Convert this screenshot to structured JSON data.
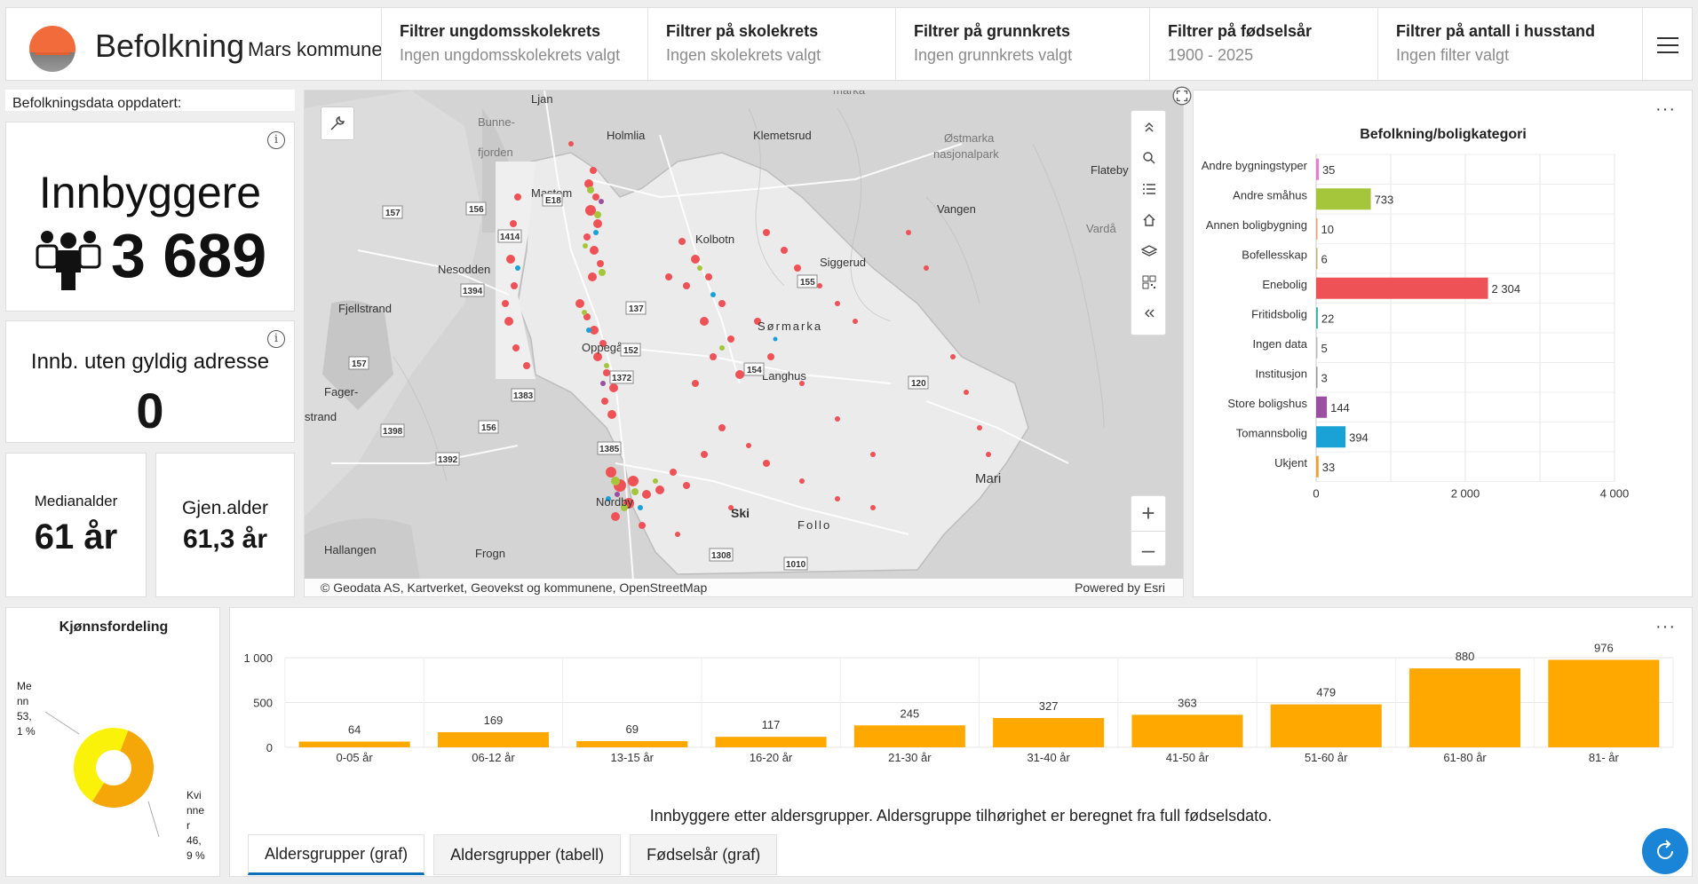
{
  "header": {
    "title": "Befolkning",
    "subtitle": "Mars kommune",
    "filters": [
      {
        "title": "Filtrer ungdomsskolekrets",
        "value": "Ingen ungdomsskolekrets valgt"
      },
      {
        "title": "Filtrer på skolekrets",
        "value": "Ingen skolekrets valgt"
      },
      {
        "title": "Filtrer på grunnkrets",
        "value": "Ingen grunnkrets valgt"
      },
      {
        "title": "Filtrer på fødselsår",
        "value": "1900 - 2025"
      },
      {
        "title": "Filtrer på antall i husstand",
        "value": "Ingen filter valgt"
      }
    ]
  },
  "cards": {
    "updated_label": "Befolkningsdata oppdatert:",
    "innbyggere_label": "Innbyggere",
    "innbyggere_value": "3 689",
    "uten_label": "Innb. uten gyldig adresse",
    "uten_value": "0",
    "median_label": "Medianalder",
    "median_value": "61 år",
    "gjen_label": "Gjen.alder",
    "gjen_value": "61,3 år",
    "info_glyph": "i"
  },
  "map": {
    "place_labels": [
      "Ljan",
      "Bunne-",
      "fjorden",
      "Holmlia",
      "Klemetsrud",
      "Østmarka",
      "nasjonalpark",
      "Flateby",
      "Mastem",
      "Kolbotn",
      "Vangen",
      "Vardå",
      "Nesodden",
      "Siggerud",
      "Fjellstrand",
      "Oppegård",
      "Sørmarka",
      "Langhus",
      "Fager-",
      "strand",
      "Mari",
      "Nordby",
      "Ski",
      "Follo",
      "Hallangen",
      "Frogn",
      "marka"
    ],
    "road_labels": [
      "157",
      "156",
      "E18",
      "1414",
      "1394",
      "137",
      "155",
      "154",
      "152",
      "1372",
      "1383",
      "157",
      "120",
      "1398",
      "156",
      "1385",
      "1392",
      "1308",
      "1010"
    ],
    "attribution": "Geodata AS, Kartverket, Geovekst og kommunene, OpenStreetMap",
    "powered_by": "Powered by Esri",
    "copyright_glyph": "©",
    "toolbar": [
      "collapse-up-icon",
      "search-icon",
      "list-icon",
      "home-icon",
      "layers-icon",
      "qr-icon",
      "collapse-left-icon"
    ],
    "zoom_in": "+",
    "zoom_out": "–"
  },
  "bolig_chart": {
    "more": "···",
    "chart_data": {
      "type": "bar",
      "orientation": "horizontal",
      "title": "Befolkning/boligkategori",
      "categories": [
        "Andre bygningstyper",
        "Andre småhus",
        "Annen boligbygning",
        "Bofellesskap",
        "Enebolig",
        "Fritidsbolig",
        "Ingen data",
        "Institusjon",
        "Store boligshus",
        "Tomannsbolig",
        "Ukjent"
      ],
      "values": [
        35,
        733,
        10,
        6,
        2304,
        22,
        5,
        3,
        144,
        394,
        33
      ],
      "value_labels": [
        "35",
        "733",
        "10",
        "6",
        "2 304",
        "22",
        "5",
        "3",
        "144",
        "394",
        "33"
      ],
      "colors": [
        "#e87ad0",
        "#a5c63b",
        "#f0a070",
        "#c8b070",
        "#ef5256",
        "#2ab5a0",
        "#bbbbbb",
        "#999999",
        "#9b4fa0",
        "#1aa1d6",
        "#f0a030"
      ],
      "xlim": [
        0,
        4000
      ],
      "xticks": [
        "0",
        "2 000",
        "4 000"
      ],
      "grid": true
    }
  },
  "kjonn_chart": {
    "chart_data": {
      "type": "pie",
      "title": "Kjønnsfordeling",
      "categories": [
        "Menn",
        "Kvinner"
      ],
      "values": [
        53.1,
        46.9
      ],
      "labels": [
        [
          "Me",
          "nn",
          "53,",
          "1 %"
        ],
        [
          "Kvi",
          "nne",
          "r",
          "46,",
          "9 %"
        ]
      ],
      "colors": [
        "#f5a70a",
        "#fbf20a"
      ]
    }
  },
  "alder_chart": {
    "more": "···",
    "caption": "Innbyggere etter aldersgrupper. Aldersgruppe tilhørighet er beregnet fra full fødselsdato.",
    "chart_data": {
      "type": "bar",
      "categories": [
        "0-05 år",
        "06-12 år",
        "13-15 år",
        "16-20 år",
        "21-30 år",
        "31-40 år",
        "41-50 år",
        "51-60 år",
        "61-80 år",
        "81- år"
      ],
      "values": [
        64,
        169,
        69,
        117,
        245,
        327,
        363,
        479,
        880,
        976
      ],
      "ylim": [
        0,
        1000
      ],
      "yticks": [
        "0",
        "500",
        "1 000"
      ],
      "color": "#ffa800",
      "grid": true
    }
  },
  "tabs": [
    {
      "label": "Aldersgrupper (graf)",
      "active": true
    },
    {
      "label": "Aldersgrupper (tabell)",
      "active": false
    },
    {
      "label": "Fødselsår (graf)",
      "active": false
    }
  ]
}
